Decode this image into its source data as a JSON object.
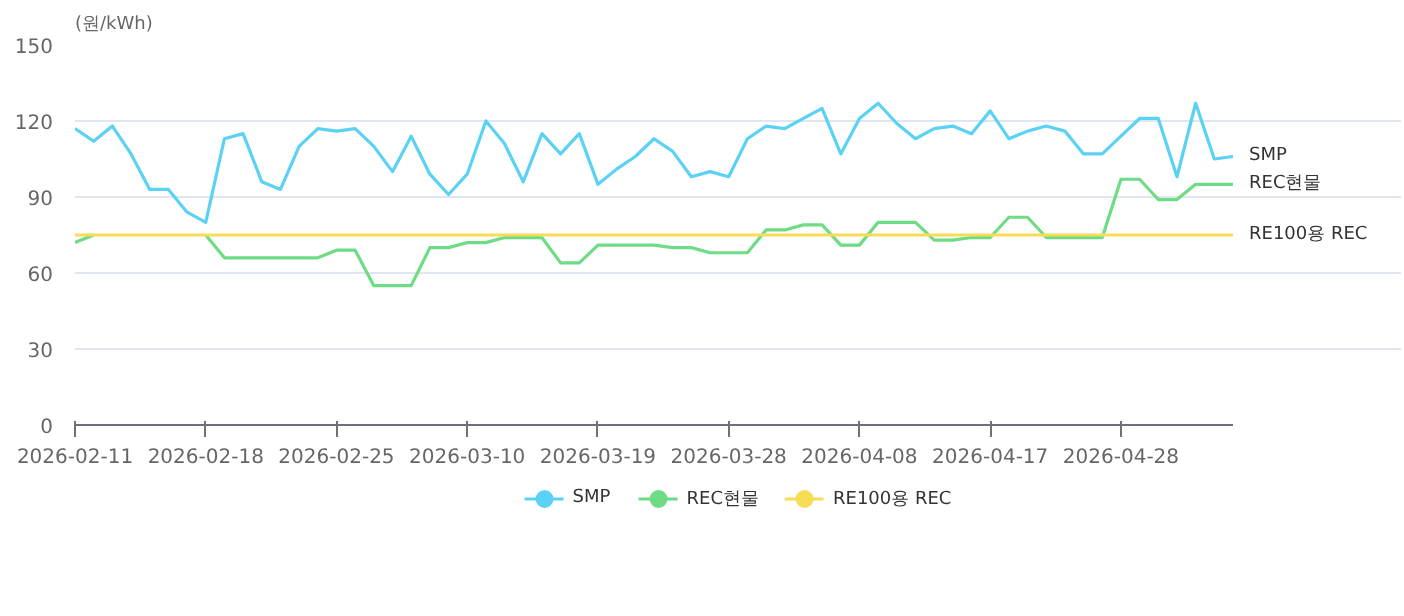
{
  "chart_data": {
    "type": "line",
    "ylabel": "(원/kWh)",
    "categories": [
      "2026-02-11",
      null,
      null,
      null,
      null,
      null,
      null,
      "2026-02-18",
      null,
      null,
      null,
      null,
      null,
      null,
      "2026-02-25",
      null,
      null,
      null,
      null,
      null,
      null,
      "2026-03-10",
      null,
      null,
      null,
      null,
      null,
      null,
      "2026-03-19",
      null,
      null,
      null,
      null,
      null,
      null,
      "2026-03-28",
      null,
      null,
      null,
      null,
      null,
      null,
      "2026-04-08",
      null,
      null,
      null,
      null,
      null,
      null,
      "2026-04-17",
      null,
      null,
      null,
      null,
      null,
      null,
      "2026-04-28",
      null,
      null,
      null,
      null,
      null,
      null
    ],
    "series": [
      {
        "name": "SMP",
        "color": "#5bd2f5",
        "values": [
          117,
          112,
          118,
          107,
          93,
          93,
          84,
          80,
          113,
          115,
          96,
          93,
          110,
          117,
          116,
          117,
          110,
          100,
          114,
          99,
          91,
          99,
          120,
          111,
          96,
          115,
          107,
          115,
          95,
          101,
          106,
          113,
          108,
          98,
          100,
          98,
          113,
          118,
          117,
          121,
          125,
          107,
          121,
          127,
          119,
          113,
          117,
          118,
          115,
          124,
          113,
          116,
          118,
          116,
          107,
          107,
          114,
          121,
          121,
          98,
          127,
          105,
          106
        ]
      },
      {
        "name": "REC현물",
        "color": "#6ddc85",
        "values": [
          72,
          75,
          null,
          null,
          null,
          null,
          null,
          75,
          66,
          66,
          66,
          66,
          66,
          66,
          69,
          69,
          55,
          55,
          55,
          70,
          70,
          72,
          72,
          74,
          74,
          74,
          64,
          64,
          71,
          71,
          71,
          71,
          70,
          70,
          68,
          68,
          68,
          77,
          77,
          79,
          79,
          71,
          71,
          80,
          80,
          80,
          73,
          73,
          74,
          74,
          82,
          82,
          74,
          74,
          74,
          74,
          97,
          97,
          89,
          89,
          95,
          95,
          95
        ]
      },
      {
        "name": "RE100용 REC",
        "color": "#f7dc55",
        "values": [
          75,
          75,
          75,
          75,
          75,
          75,
          75,
          75,
          75,
          75,
          75,
          75,
          75,
          75,
          75,
          75,
          75,
          75,
          75,
          75,
          75,
          75,
          75,
          75,
          75,
          75,
          75,
          75,
          75,
          75,
          75,
          75,
          75,
          75,
          75,
          75,
          75,
          75,
          75,
          75,
          75,
          75,
          75,
          75,
          75,
          75,
          75,
          75,
          75,
          75,
          75,
          75,
          75,
          75,
          75,
          75,
          75,
          75,
          75,
          75,
          75,
          75,
          75
        ]
      }
    ],
    "ylim": [
      0,
      150
    ],
    "yticks": [
      0,
      30,
      60,
      90,
      120,
      150
    ],
    "grid": "y",
    "legend": "bottom",
    "marker": "none",
    "line_style": "solid"
  }
}
